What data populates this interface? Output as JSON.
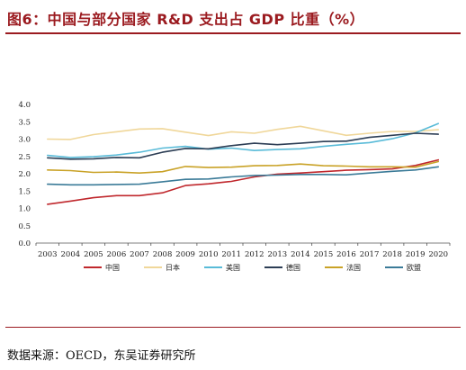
{
  "figure": {
    "title": "图6：中国与部分国家 R&D 支出占 GDP 比重（%）",
    "source": "数据来源：OECD，东吴证券研究所"
  },
  "chart_data": {
    "type": "line",
    "x": [
      "2003",
      "2004",
      "2005",
      "2006",
      "2007",
      "2008",
      "2009",
      "2010",
      "2011",
      "2012",
      "2013",
      "2014",
      "2015",
      "2016",
      "2017",
      "2018",
      "2019",
      "2020"
    ],
    "ylim": [
      0,
      4.0
    ],
    "yticks": [
      "0.0",
      "0.5",
      "1.0",
      "1.5",
      "2.0",
      "2.5",
      "3.0",
      "3.5",
      "4.0"
    ],
    "grid": false,
    "legend_position": "bottom",
    "series": [
      {
        "name": "中国",
        "color": "#c0282d",
        "values": [
          1.12,
          1.21,
          1.31,
          1.37,
          1.37,
          1.45,
          1.66,
          1.71,
          1.78,
          1.91,
          1.99,
          2.02,
          2.06,
          2.1,
          2.12,
          2.14,
          2.24,
          2.4
        ]
      },
      {
        "name": "日本",
        "color": "#f0d79a",
        "values": [
          3.0,
          2.99,
          3.13,
          3.21,
          3.29,
          3.3,
          3.2,
          3.1,
          3.21,
          3.17,
          3.28,
          3.37,
          3.24,
          3.11,
          3.17,
          3.22,
          3.22,
          3.27
        ]
      },
      {
        "name": "美国",
        "color": "#59bbd8",
        "values": [
          2.53,
          2.47,
          2.49,
          2.54,
          2.62,
          2.74,
          2.79,
          2.71,
          2.74,
          2.67,
          2.7,
          2.72,
          2.79,
          2.85,
          2.9,
          3.01,
          3.18,
          3.45
        ]
      },
      {
        "name": "德国",
        "color": "#2d3e55",
        "values": [
          2.46,
          2.42,
          2.43,
          2.47,
          2.46,
          2.62,
          2.73,
          2.72,
          2.81,
          2.88,
          2.84,
          2.88,
          2.93,
          2.94,
          3.05,
          3.11,
          3.17,
          3.14
        ]
      },
      {
        "name": "法国",
        "color": "#c9a227",
        "values": [
          2.11,
          2.09,
          2.04,
          2.05,
          2.02,
          2.06,
          2.21,
          2.18,
          2.19,
          2.23,
          2.24,
          2.28,
          2.23,
          2.22,
          2.2,
          2.2,
          2.19,
          2.35
        ]
      },
      {
        "name": "欧盟",
        "color": "#3b7b98",
        "values": [
          1.7,
          1.68,
          1.68,
          1.69,
          1.7,
          1.77,
          1.84,
          1.85,
          1.91,
          1.95,
          1.96,
          1.98,
          1.98,
          1.97,
          2.02,
          2.07,
          2.11,
          2.2
        ]
      }
    ]
  }
}
